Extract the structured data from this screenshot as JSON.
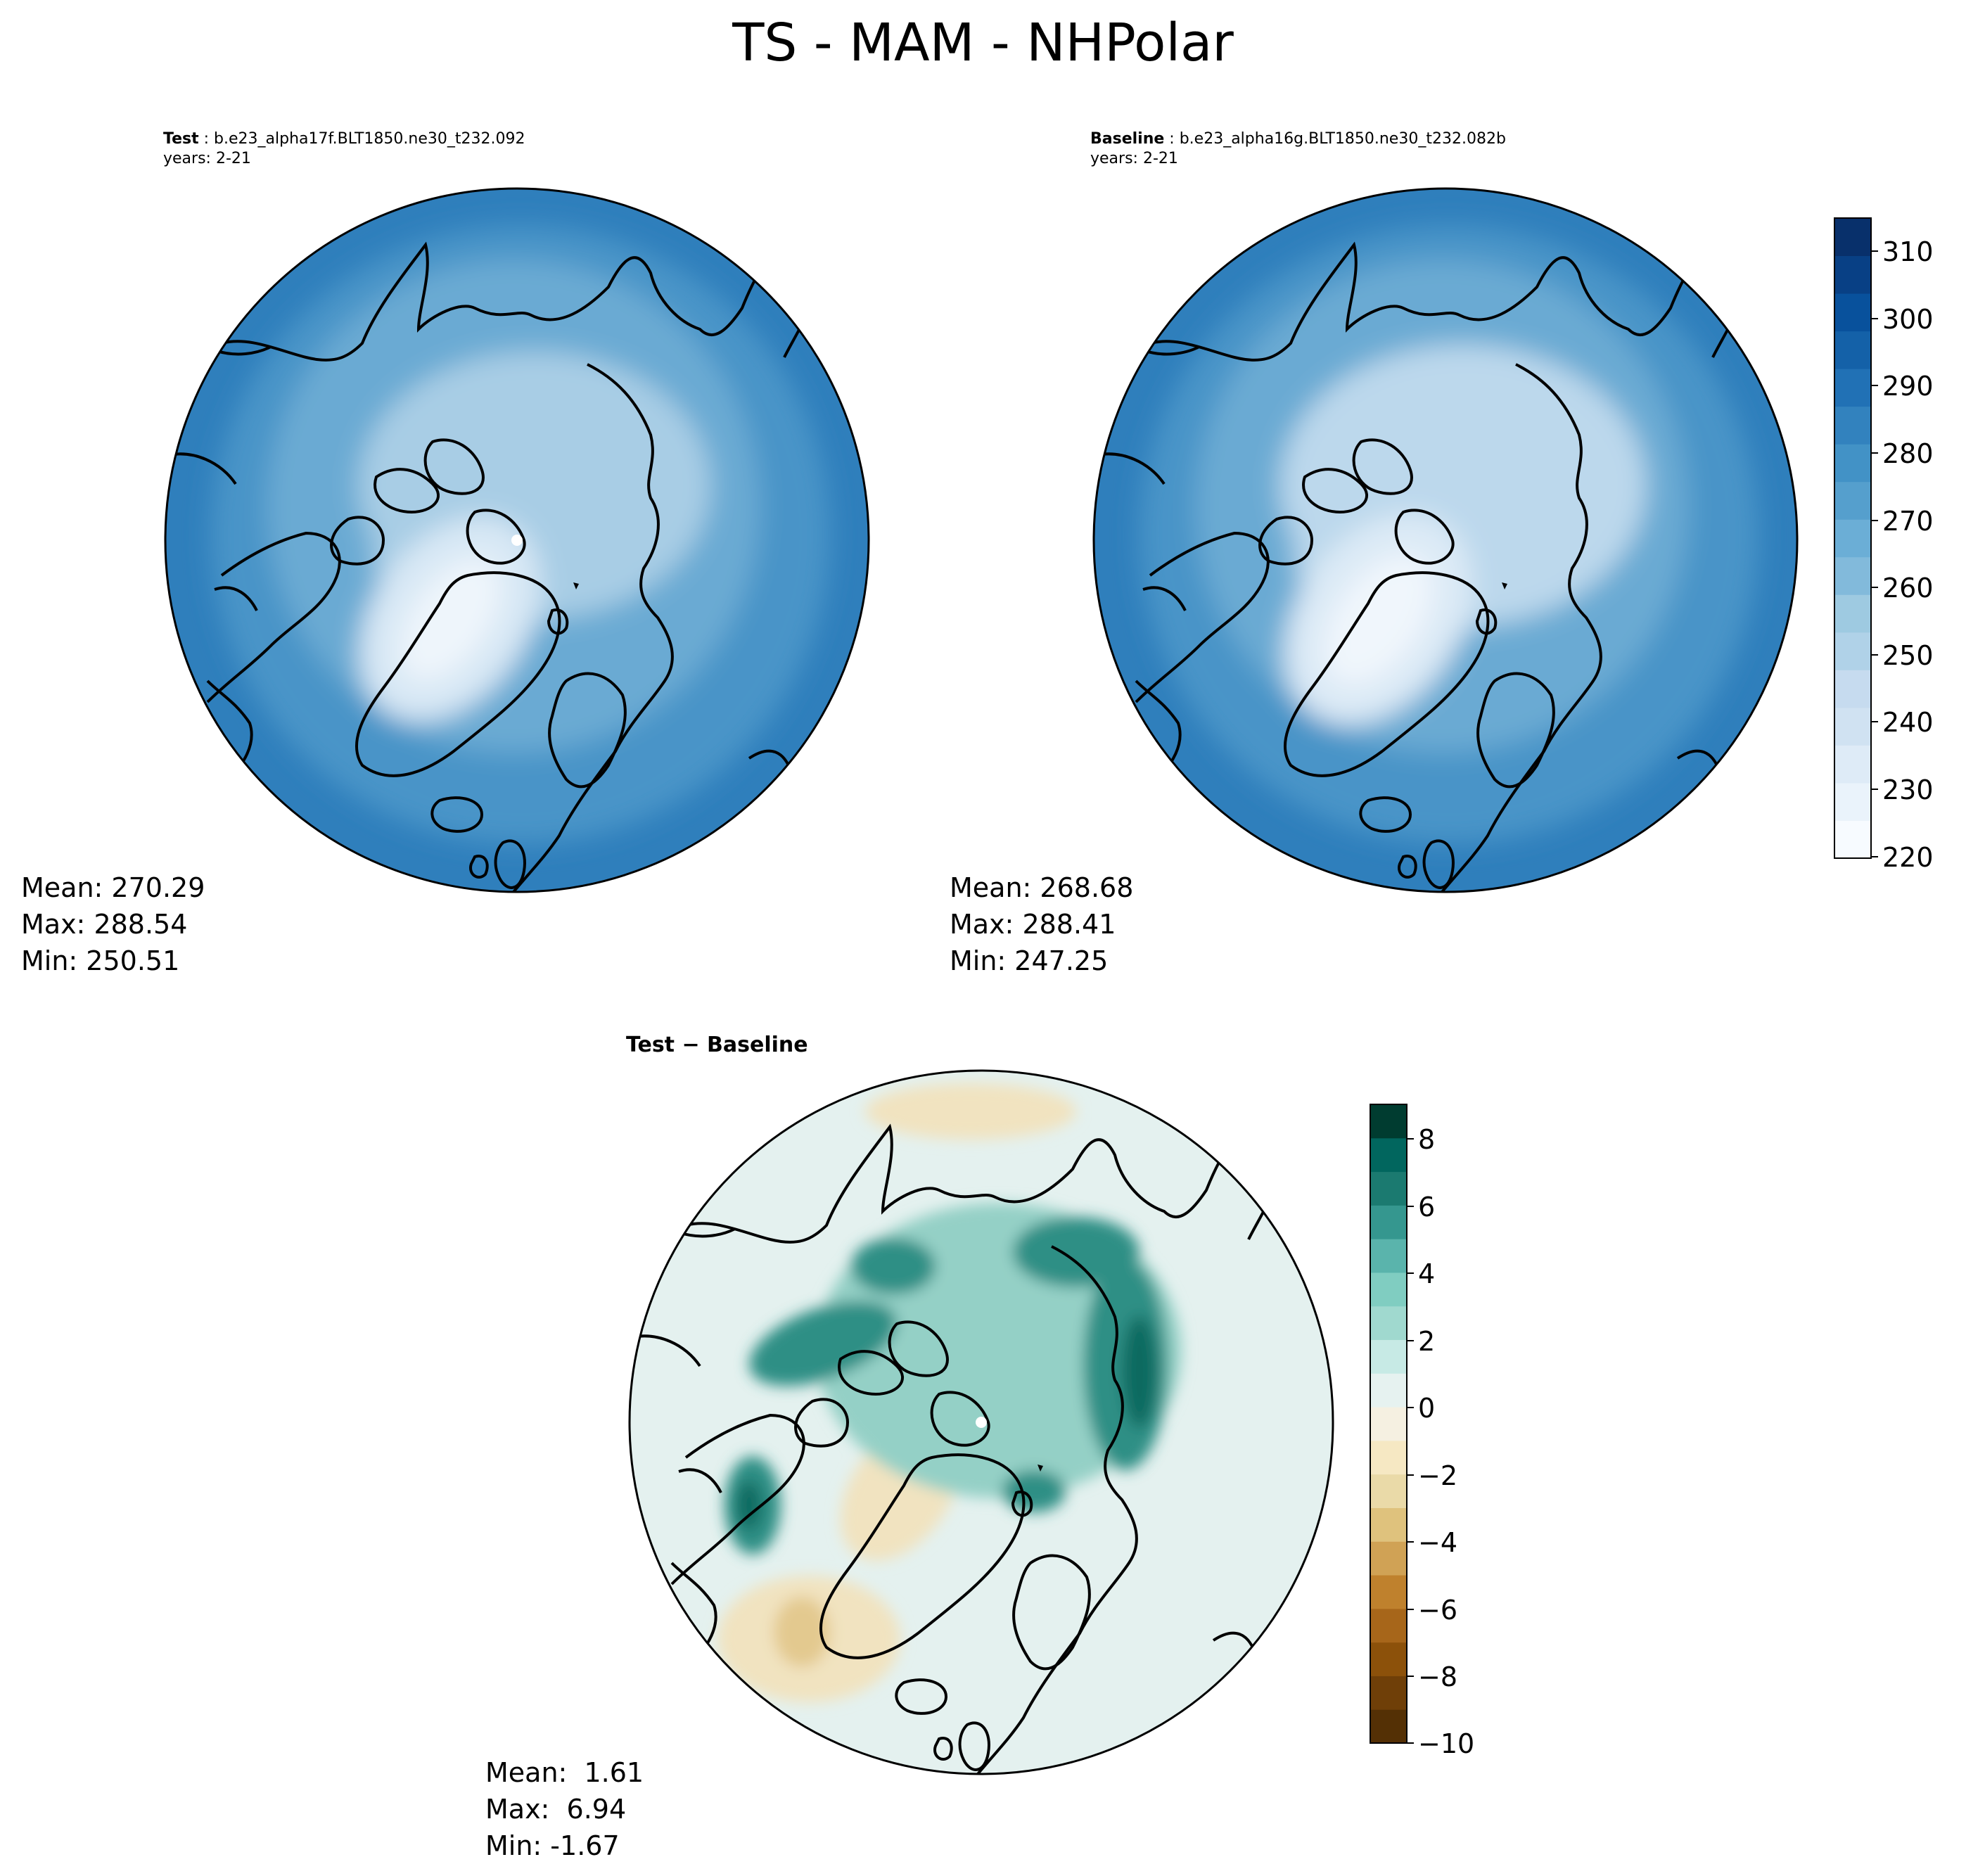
{
  "figure": {
    "title": "TS - MAM - NHPolar"
  },
  "panels": {
    "test": {
      "label": "Test",
      "case": "b.e23_alpha17f.BLT1850.ne30_t232.092",
      "years": "years: 2-21",
      "mean": "Mean: 270.29",
      "max": "Max: 288.54",
      "min": "Min: 250.51"
    },
    "baseline": {
      "label": "Baseline",
      "case": "b.e23_alpha16g.BLT1850.ne30_t232.082b",
      "years": "years: 2-21",
      "mean": "Mean: 268.68",
      "max": "Max: 288.41",
      "min": "Min: 247.25"
    },
    "difference": {
      "title": "Test − Baseline",
      "mean": "Mean:  1.61",
      "max": "Max:  6.94",
      "min": "Min: -1.67"
    }
  },
  "colorbars": {
    "main": {
      "ticks": [
        "220",
        "230",
        "240",
        "250",
        "260",
        "270",
        "280",
        "290",
        "300",
        "310"
      ],
      "range": [
        220,
        315
      ],
      "colors": [
        "#f7fbff",
        "#eaf3fb",
        "#deebf7",
        "#d0e2f2",
        "#c6dbef",
        "#b0d2e8",
        "#9ecae1",
        "#82badb",
        "#6baed6",
        "#559fcd",
        "#4292c6",
        "#3282be",
        "#2171b5",
        "#1461a8",
        "#08519c",
        "#084085",
        "#08306b"
      ]
    },
    "diff": {
      "ticks": [
        "8",
        "6",
        "4",
        "2",
        "0",
        "−2",
        "−4",
        "−6",
        "−8",
        "−10"
      ],
      "range": [
        -10,
        9
      ],
      "colors": [
        "#543005",
        "#6f3f08",
        "#8c510a",
        "#a7661a",
        "#bf812d",
        "#d0a255",
        "#dfc27d",
        "#eadaa8",
        "#f6e8c3",
        "#f5f0e1",
        "#e6f2f0",
        "#c7eae5",
        "#a0d9cf",
        "#80cdc1",
        "#5ab4ac",
        "#35978f",
        "#1b7a70",
        "#01665e",
        "#003c30"
      ]
    }
  },
  "map_fields": {
    "test": {
      "ocean_far": "#2f7fbc",
      "ocean_mid": "#4a94c8",
      "ocean_near": "#6aaad3",
      "arctic": "#a8cde5",
      "greenland": "#d8e8f5",
      "greenland_core": "#eef5fb"
    },
    "baseline": {
      "ocean_far": "#2f7fbc",
      "ocean_mid": "#4a94c8",
      "ocean_near": "#6aaad3",
      "arctic": "#bcd8ec",
      "greenland": "#dceaf6",
      "greenland_core": "#f0f6fc"
    },
    "difference": {
      "background": "#e4f1ef",
      "arctic": "#94d0c6",
      "hotspot": "#2e8f85",
      "hotspot_core": "#0f6b61",
      "negative": "#f1e3c0",
      "negative_core": "#e3c98f"
    }
  }
}
